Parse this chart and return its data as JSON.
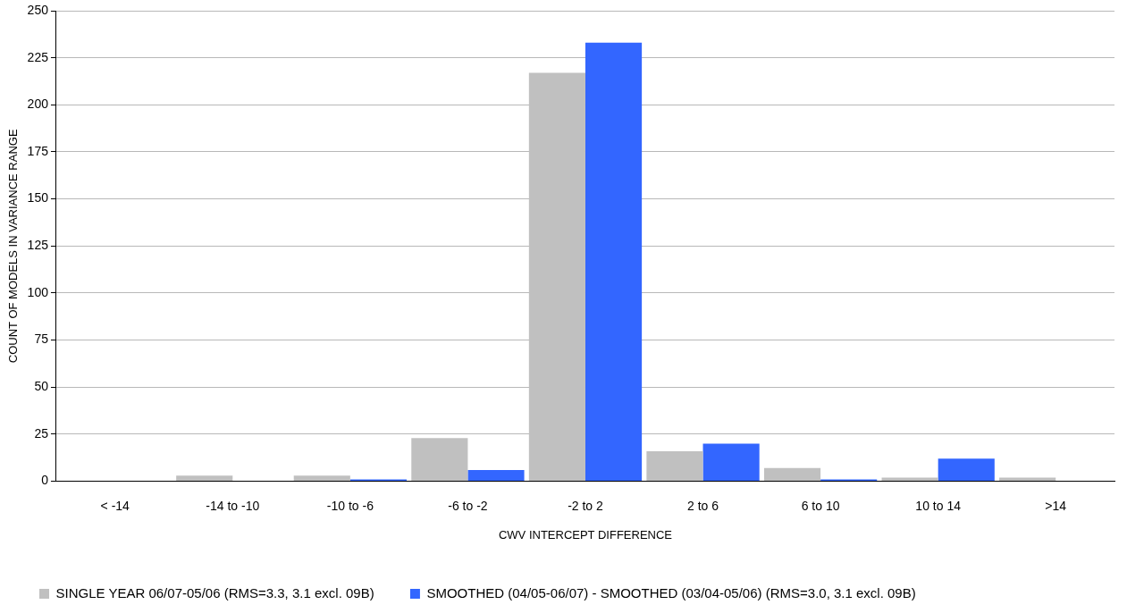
{
  "chart_data": {
    "type": "bar",
    "xlabel": "CWV INTERCEPT DIFFERENCE",
    "ylabel": "COUNT OF MODELS IN VARIANCE RANGE",
    "categories": [
      "< -14",
      "-14 to -10",
      "-10 to -6",
      "-6 to -2",
      "-2 to 2",
      "2 to 6",
      "6 to 10",
      "10 to 14",
      ">14"
    ],
    "series": [
      {
        "name": "SINGLE YEAR 06/07-05/06 (RMS=3.3, 3.1 excl. 09B)",
        "color": "#c0c0c0",
        "values": [
          0,
          3,
          3,
          23,
          217,
          16,
          7,
          2,
          2
        ]
      },
      {
        "name": "SMOOTHED (04/05-06/07) - SMOOTHED (03/04-05/06) (RMS=3.0, 3.1 excl. 09B)",
        "color": "#3366ff",
        "values": [
          0,
          0,
          1,
          6,
          233,
          20,
          1,
          12,
          0
        ]
      }
    ],
    "ylim": [
      0,
      250
    ],
    "yticks": [
      0,
      25,
      50,
      75,
      100,
      125,
      150,
      175,
      200,
      225,
      250
    ],
    "grid": "y",
    "legend": "bottom"
  }
}
